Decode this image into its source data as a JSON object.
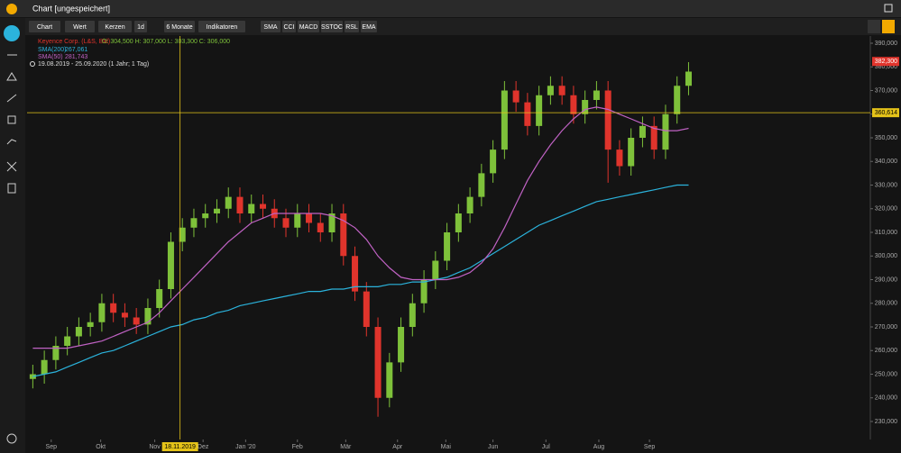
{
  "header": {
    "title": "Chart [ungespeichert]"
  },
  "toolbar": [
    "Chart",
    "Wert",
    "Kerzen",
    "1d",
    "6 Monate",
    "Indikatoren",
    "SMA",
    "CCI",
    "MACD",
    "SSTOC",
    "RSL",
    "EMA"
  ],
  "chart_data": {
    "type": "candlestick",
    "instrument": "Keyence Corp. (L&S, Bid)",
    "ohlc_text": "O: 304,500  H: 307,000  L: 303,300  C: 306,000",
    "range_text": "19.08.2019 - 25.09.2020  (1 Jahr; 1 Tag)",
    "up_color": "#7ec13a",
    "down_color": "#e0342c",
    "open": [
      248000,
      250000,
      256000,
      262000,
      266000,
      270000,
      272000,
      280000,
      276000,
      274000,
      271000,
      278000,
      286000,
      306000,
      312000,
      316000,
      318000,
      320000,
      325000,
      318000,
      322000,
      320000,
      316000,
      312000,
      318000,
      314000,
      310000,
      318000,
      300000,
      285000,
      270000,
      240000,
      255000,
      270000,
      280000,
      290000,
      298000,
      310000,
      318000,
      325000,
      335000,
      345000,
      370000,
      365000,
      355000,
      368000,
      372000,
      368000,
      360000,
      366000,
      370000,
      345000,
      338000,
      350000,
      355000,
      345000,
      360000,
      372000
    ],
    "high": [
      254000,
      260000,
      266000,
      270000,
      274000,
      276000,
      284000,
      284000,
      280000,
      278000,
      282000,
      290000,
      310000,
      316000,
      320000,
      322000,
      324000,
      329000,
      329000,
      326000,
      326000,
      324000,
      320000,
      322000,
      322000,
      318000,
      322000,
      322000,
      304000,
      289000,
      274000,
      259000,
      274000,
      284000,
      294000,
      302000,
      314000,
      322000,
      329000,
      339000,
      349000,
      374000,
      374000,
      369000,
      372000,
      376000,
      376000,
      372000,
      370000,
      374000,
      374000,
      349000,
      354000,
      359000,
      359000,
      364000,
      376000,
      382000
    ],
    "low": [
      244000,
      246000,
      252000,
      258000,
      262000,
      266000,
      268000,
      272000,
      270000,
      267000,
      267000,
      274000,
      282000,
      302000,
      308000,
      312000,
      314000,
      316000,
      314000,
      314000,
      316000,
      312000,
      308000,
      308000,
      310000,
      306000,
      306000,
      296000,
      281000,
      266000,
      232000,
      236000,
      251000,
      266000,
      276000,
      286000,
      294000,
      306000,
      314000,
      321000,
      331000,
      341000,
      361000,
      351000,
      351000,
      364000,
      364000,
      356000,
      356000,
      362000,
      331000,
      334000,
      334000,
      346000,
      341000,
      341000,
      356000,
      368000
    ],
    "close": [
      250000,
      256000,
      262000,
      266000,
      270000,
      272000,
      280000,
      276000,
      274000,
      271000,
      278000,
      286000,
      306000,
      312000,
      316000,
      318000,
      320000,
      325000,
      318000,
      322000,
      320000,
      316000,
      312000,
      318000,
      314000,
      310000,
      318000,
      300000,
      285000,
      270000,
      240000,
      255000,
      270000,
      280000,
      290000,
      298000,
      310000,
      318000,
      325000,
      335000,
      345000,
      370000,
      365000,
      355000,
      368000,
      372000,
      368000,
      360000,
      366000,
      370000,
      345000,
      338000,
      350000,
      355000,
      345000,
      360000,
      372000,
      378000
    ],
    "series": [
      {
        "name": "SMA(200)",
        "legend_value": "267,061",
        "color": "#2bb3dc",
        "values": [
          249000,
          250000,
          251000,
          253000,
          255000,
          257000,
          259000,
          260000,
          262000,
          264000,
          266000,
          268000,
          270000,
          271000,
          273000,
          274000,
          276000,
          277000,
          279000,
          280000,
          281000,
          282000,
          283000,
          284000,
          285000,
          285000,
          286000,
          286000,
          287000,
          287000,
          287000,
          288000,
          288000,
          289000,
          289000,
          290000,
          291000,
          293000,
          295000,
          298000,
          301000,
          304000,
          307000,
          310000,
          313000,
          315000,
          317000,
          319000,
          321000,
          323000,
          324000,
          325000,
          326000,
          327000,
          328000,
          329000,
          330000,
          330000
        ]
      },
      {
        "name": "SMA(50)",
        "legend_value": "281,743",
        "color": "#c062c4",
        "values": [
          261000,
          261000,
          261000,
          261000,
          262000,
          263000,
          264000,
          266000,
          268000,
          270000,
          272000,
          276000,
          281000,
          286000,
          291000,
          296000,
          301000,
          306000,
          310000,
          314000,
          316000,
          318000,
          318000,
          318000,
          318000,
          318000,
          317000,
          315000,
          312000,
          307000,
          300000,
          295000,
          291000,
          290000,
          290000,
          290000,
          290000,
          291000,
          293000,
          297000,
          303000,
          312000,
          322000,
          332000,
          340000,
          347000,
          353000,
          358000,
          362000,
          363000,
          362000,
          360000,
          358000,
          356000,
          354000,
          353000,
          353000,
          354000
        ]
      }
    ],
    "xlim": [
      -0.5,
      72.8
    ],
    "xticks": [
      {
        "value": 1.6,
        "label": "Sep"
      },
      {
        "value": 5.9,
        "label": "Okt"
      },
      {
        "value": 10.6,
        "label": "Nov"
      },
      {
        "value": 14.8,
        "label": "Dez"
      },
      {
        "value": 18.5,
        "label": "Jan '20"
      },
      {
        "value": 23,
        "label": "Feb"
      },
      {
        "value": 27.2,
        "label": "Mär"
      },
      {
        "value": 31.7,
        "label": "Apr"
      },
      {
        "value": 35.9,
        "label": "Mai"
      },
      {
        "value": 40,
        "label": "Jun"
      },
      {
        "value": 44.6,
        "label": "Jul"
      },
      {
        "value": 49.2,
        "label": "Aug"
      },
      {
        "value": 53.6,
        "label": "Sep"
      }
    ],
    "ylim": [
      222380,
      393050
    ],
    "yticks": [
      {
        "value": 230000,
        "label": "230,000"
      },
      {
        "value": 240000,
        "label": "240,000"
      },
      {
        "value": 250000,
        "label": "250,000"
      },
      {
        "value": 260000,
        "label": "260,000"
      },
      {
        "value": 270000,
        "label": "270,000"
      },
      {
        "value": 280000,
        "label": "280,000"
      },
      {
        "value": 290000,
        "label": "290,000"
      },
      {
        "value": 300000,
        "label": "300,000"
      },
      {
        "value": 310000,
        "label": "310,000"
      },
      {
        "value": 320000,
        "label": "320,000"
      },
      {
        "value": 330000,
        "label": "330,000"
      },
      {
        "value": 340000,
        "label": "340,000"
      },
      {
        "value": 350000,
        "label": "350,000"
      },
      {
        "value": 360000,
        "label": "360,000"
      },
      {
        "value": 370000,
        "label": "370,000"
      },
      {
        "value": 380000,
        "label": "380,000"
      },
      {
        "value": 390000,
        "label": "390,000"
      }
    ],
    "crosshair": {
      "x": 12.8,
      "x_label": "18.11.2019",
      "y": 360614,
      "y_label": "360,614",
      "color": "#e5c319"
    },
    "last_price": {
      "value": 382300,
      "label": "382,300"
    }
  }
}
